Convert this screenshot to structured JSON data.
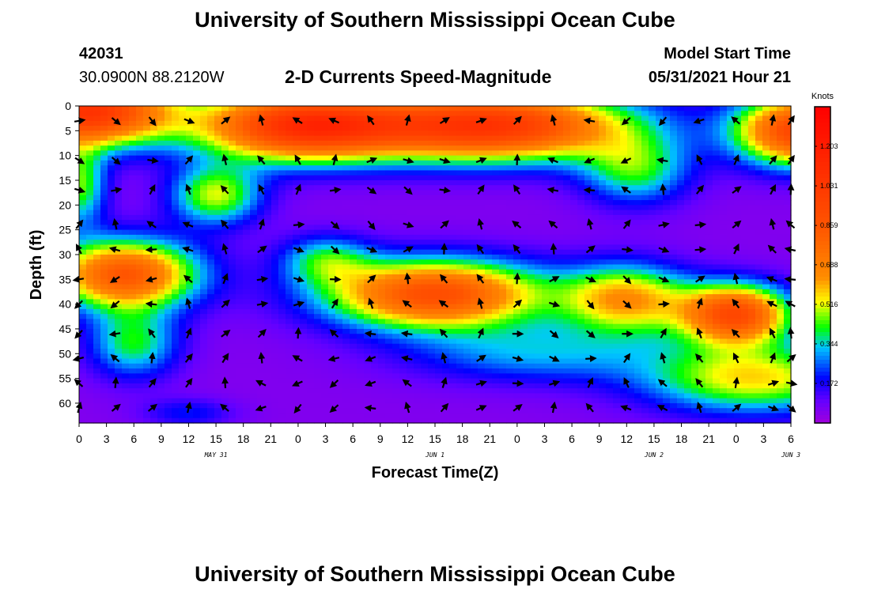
{
  "header": {
    "title": "University of Southern Mississippi Ocean Cube",
    "station_id": "42031",
    "location": "30.0900N  88.2120W",
    "subtitle": "2-D Currents Speed-Magnitude",
    "model_start_label": "Model Start Time",
    "model_start_value": "05/31/2021 Hour 21"
  },
  "footer": {
    "title": "University of Southern Mississippi Ocean Cube"
  },
  "chart_data": {
    "type": "heatmap",
    "xlabel": "Forecast Time(Z)",
    "ylabel": "Depth (ft)",
    "x_tick_labels": [
      "0",
      "3",
      "6",
      "9",
      "12",
      "15",
      "18",
      "21",
      "0",
      "3",
      "6",
      "9",
      "12",
      "15",
      "18",
      "21",
      "0",
      "3",
      "6",
      "9",
      "12",
      "15",
      "18",
      "21",
      "0",
      "3",
      "6"
    ],
    "date_labels": [
      {
        "label": "MAY 31",
        "x_hour": 15
      },
      {
        "label": "JUN 1",
        "x_hour": 39
      },
      {
        "label": "JUN 2",
        "x_hour": 63
      },
      {
        "label": "JUN 3",
        "x_hour": 78
      }
    ],
    "x_range_hours": [
      0,
      78
    ],
    "y_ticks": [
      0,
      5,
      10,
      15,
      20,
      25,
      30,
      35,
      40,
      45,
      50,
      55,
      60
    ],
    "ylim": [
      0,
      64
    ],
    "y_inverted": true,
    "colorbar": {
      "unit": "Knots",
      "tick_labels": [
        "1.203",
        "1.031",
        "0.859",
        "0.688",
        "0.516",
        "0.344",
        "0.172"
      ],
      "range": [
        0,
        1.375
      ]
    },
    "arrow_times_hours": [
      0,
      4,
      8,
      12,
      16,
      20,
      24,
      28,
      32,
      36,
      40,
      44,
      48,
      52,
      56,
      60,
      64,
      68,
      72,
      76,
      78
    ],
    "arrow_depths_ft": [
      3,
      11,
      17,
      24,
      29,
      35,
      40,
      46,
      51,
      56,
      61
    ]
  }
}
